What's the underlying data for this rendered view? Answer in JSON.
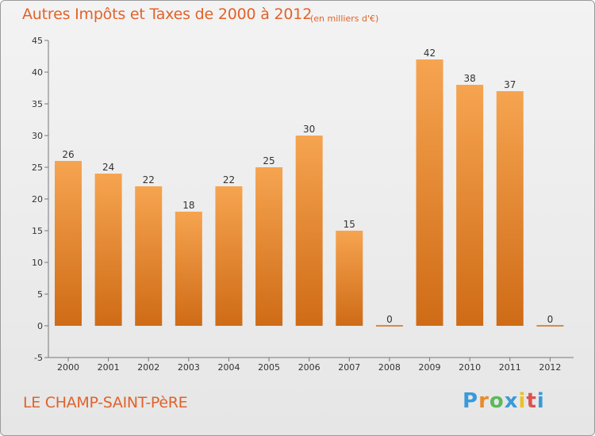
{
  "title": "Autres Impôts et Taxes de 2000 à 2012",
  "unit_note": "(en milliers d'€)",
  "commune": "LE CHAMP-SAINT-PèRE",
  "logo_letters": [
    "P",
    "r",
    "o",
    "x",
    "i",
    "t",
    "i"
  ],
  "colors": {
    "title": "#e1622a",
    "bar_top": "#f6a450",
    "bar_bottom": "#cf6b16"
  },
  "chart_data": {
    "type": "bar",
    "categories": [
      "2000",
      "2001",
      "2002",
      "2003",
      "2004",
      "2005",
      "2006",
      "2007",
      "2008",
      "2009",
      "2010",
      "2011",
      "2012"
    ],
    "values": [
      26,
      24,
      22,
      18,
      22,
      25,
      30,
      15,
      0,
      42,
      38,
      37,
      0
    ],
    "ylim": [
      -5,
      45
    ],
    "yticks": [
      -5,
      0,
      5,
      10,
      15,
      20,
      25,
      30,
      35,
      40,
      45
    ],
    "grid": false,
    "xlabel": "",
    "ylabel": ""
  }
}
